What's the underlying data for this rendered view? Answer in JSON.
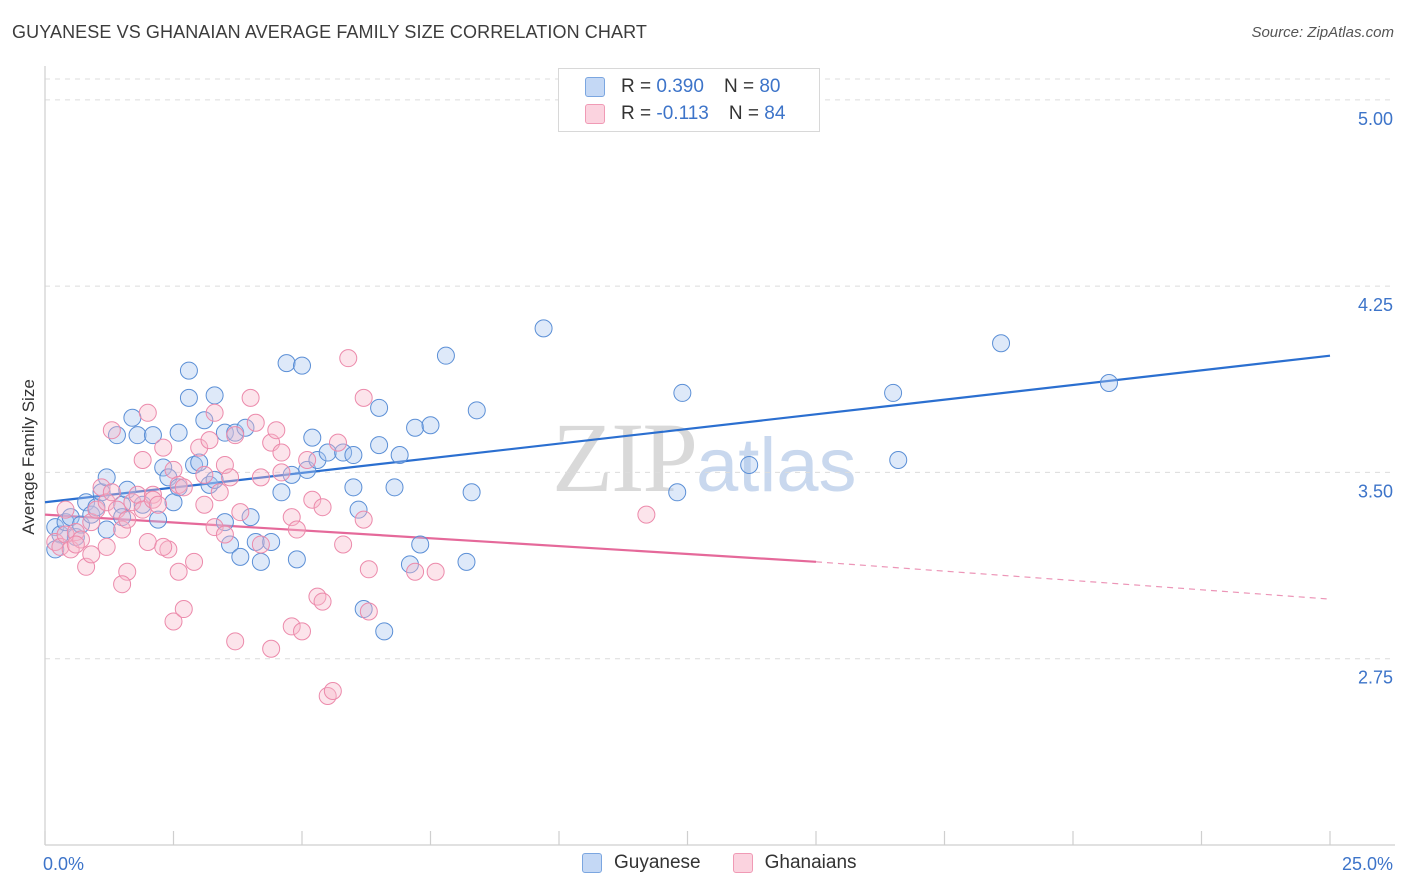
{
  "header": {
    "title": "GUYANESE VS GHANAIAN AVERAGE FAMILY SIZE CORRELATION CHART",
    "source": "Source: ZipAtlas.com"
  },
  "watermark": {
    "zip": "ZIP",
    "atlas": "atlas"
  },
  "legend": {
    "rows": [
      {
        "r_label": "R =",
        "r_value": "0.390",
        "n_label": "N =",
        "n_value": "80",
        "color": "#a9c6f0"
      },
      {
        "r_label": "R =",
        "r_value": "-0.113",
        "n_label": "N =",
        "n_value": "84",
        "color": "#f7b8cb"
      }
    ]
  },
  "bottom_legend": {
    "series_a": "Guyanese",
    "series_b": "Ghanaians"
  },
  "chart_data": {
    "type": "scatter",
    "title": "GUYANESE VS GHANAIAN AVERAGE FAMILY SIZE CORRELATION CHART",
    "ylabel": "Average Family Size",
    "xlim": [
      0,
      25
    ],
    "ylim": [
      2.0,
      5.1
    ],
    "y_ticks": [
      2.75,
      3.5,
      4.25,
      5.0
    ],
    "y_tick_labels": [
      "2.75",
      "3.50",
      "4.25",
      "5.00"
    ],
    "x_tick_labels": [
      "0.0%",
      "25.0%"
    ],
    "grid": true,
    "colors": {
      "guyanese": "#4a86d4",
      "ghanaians": "#e8709b"
    },
    "series": [
      {
        "name": "Guyanese",
        "trend": {
          "x0": 0.0,
          "y0": 3.38,
          "x1": 25.0,
          "y1": 3.97
        },
        "points": [
          [
            0.2,
            3.28
          ],
          [
            0.3,
            3.25
          ],
          [
            0.4,
            3.3
          ],
          [
            0.5,
            3.32
          ],
          [
            0.6,
            3.24
          ],
          [
            0.7,
            3.29
          ],
          [
            0.8,
            3.38
          ],
          [
            0.9,
            3.33
          ],
          [
            1.0,
            3.36
          ],
          [
            1.1,
            3.42
          ],
          [
            1.2,
            3.27
          ],
          [
            1.2,
            3.48
          ],
          [
            1.4,
            3.65
          ],
          [
            1.5,
            3.37
          ],
          [
            1.5,
            3.32
          ],
          [
            1.6,
            3.43
          ],
          [
            1.7,
            3.72
          ],
          [
            1.8,
            3.65
          ],
          [
            1.9,
            3.37
          ],
          [
            2.1,
            3.65
          ],
          [
            2.2,
            3.31
          ],
          [
            2.3,
            3.52
          ],
          [
            2.4,
            3.48
          ],
          [
            2.5,
            3.38
          ],
          [
            2.6,
            3.44
          ],
          [
            2.6,
            3.66
          ],
          [
            2.8,
            3.8
          ],
          [
            2.8,
            3.91
          ],
          [
            2.9,
            3.53
          ],
          [
            3.1,
            3.71
          ],
          [
            3.2,
            3.45
          ],
          [
            3.3,
            3.81
          ],
          [
            3.3,
            3.47
          ],
          [
            3.5,
            3.66
          ],
          [
            3.5,
            3.3
          ],
          [
            3.6,
            3.21
          ],
          [
            3.7,
            3.66
          ],
          [
            3.8,
            3.16
          ],
          [
            3.9,
            3.68
          ],
          [
            4.0,
            3.32
          ],
          [
            4.1,
            3.22
          ],
          [
            4.2,
            3.14
          ],
          [
            4.4,
            3.22
          ],
          [
            4.6,
            3.42
          ],
          [
            4.7,
            3.94
          ],
          [
            4.8,
            3.49
          ],
          [
            4.9,
            3.15
          ],
          [
            5.0,
            3.93
          ],
          [
            5.1,
            3.51
          ],
          [
            5.2,
            3.64
          ],
          [
            5.3,
            3.55
          ],
          [
            5.5,
            3.58
          ],
          [
            5.8,
            3.58
          ],
          [
            6.0,
            3.44
          ],
          [
            6.0,
            3.57
          ],
          [
            6.1,
            3.35
          ],
          [
            6.2,
            2.95
          ],
          [
            6.5,
            3.61
          ],
          [
            6.5,
            3.76
          ],
          [
            6.6,
            2.86
          ],
          [
            6.8,
            3.44
          ],
          [
            6.9,
            3.57
          ],
          [
            7.1,
            3.13
          ],
          [
            7.2,
            3.68
          ],
          [
            7.3,
            3.21
          ],
          [
            7.5,
            3.69
          ],
          [
            7.8,
            3.97
          ],
          [
            8.2,
            3.14
          ],
          [
            8.3,
            3.42
          ],
          [
            8.4,
            3.75
          ],
          [
            9.7,
            4.08
          ],
          [
            12.3,
            3.42
          ],
          [
            12.4,
            3.82
          ],
          [
            13.7,
            3.53
          ],
          [
            16.5,
            3.82
          ],
          [
            16.6,
            3.55
          ],
          [
            18.6,
            4.02
          ],
          [
            20.7,
            3.86
          ],
          [
            0.2,
            3.19
          ],
          [
            3.0,
            3.54
          ]
        ]
      },
      {
        "name": "Ghanaians",
        "trend": {
          "x0": 0.0,
          "y0": 3.33,
          "x1": 15.0,
          "y1": 3.14,
          "dash_x1": 25.0,
          "dash_y1": 2.99
        },
        "points": [
          [
            0.2,
            3.22
          ],
          [
            0.3,
            3.2
          ],
          [
            0.4,
            3.25
          ],
          [
            0.5,
            3.19
          ],
          [
            0.6,
            3.26
          ],
          [
            0.7,
            3.23
          ],
          [
            0.8,
            3.12
          ],
          [
            0.9,
            3.3
          ],
          [
            0.9,
            3.17
          ],
          [
            1.0,
            3.35
          ],
          [
            1.1,
            3.44
          ],
          [
            1.2,
            3.2
          ],
          [
            1.2,
            3.38
          ],
          [
            1.3,
            3.42
          ],
          [
            1.3,
            3.67
          ],
          [
            1.4,
            3.35
          ],
          [
            1.5,
            3.27
          ],
          [
            1.6,
            3.1
          ],
          [
            1.6,
            3.31
          ],
          [
            1.7,
            3.38
          ],
          [
            1.8,
            3.41
          ],
          [
            1.9,
            3.35
          ],
          [
            1.9,
            3.55
          ],
          [
            2.0,
            3.74
          ],
          [
            2.0,
            3.22
          ],
          [
            2.1,
            3.41
          ],
          [
            2.1,
            3.39
          ],
          [
            2.2,
            3.37
          ],
          [
            2.3,
            3.6
          ],
          [
            2.4,
            3.19
          ],
          [
            2.5,
            3.51
          ],
          [
            2.5,
            2.9
          ],
          [
            2.6,
            3.1
          ],
          [
            2.6,
            3.45
          ],
          [
            2.7,
            3.44
          ],
          [
            2.7,
            2.95
          ],
          [
            2.9,
            3.14
          ],
          [
            3.0,
            3.6
          ],
          [
            3.1,
            3.49
          ],
          [
            3.1,
            3.37
          ],
          [
            3.2,
            3.63
          ],
          [
            3.3,
            3.74
          ],
          [
            3.3,
            3.28
          ],
          [
            3.4,
            3.42
          ],
          [
            3.5,
            3.53
          ],
          [
            3.5,
            3.25
          ],
          [
            3.6,
            3.48
          ],
          [
            3.7,
            3.65
          ],
          [
            3.7,
            2.82
          ],
          [
            4.0,
            3.8
          ],
          [
            4.1,
            3.7
          ],
          [
            4.2,
            3.21
          ],
          [
            4.2,
            3.48
          ],
          [
            4.4,
            2.79
          ],
          [
            4.4,
            3.62
          ],
          [
            4.5,
            3.67
          ],
          [
            4.6,
            3.58
          ],
          [
            4.8,
            3.32
          ],
          [
            4.8,
            2.88
          ],
          [
            4.9,
            3.27
          ],
          [
            5.0,
            2.86
          ],
          [
            5.1,
            3.55
          ],
          [
            5.2,
            3.39
          ],
          [
            5.3,
            3.0
          ],
          [
            5.4,
            2.98
          ],
          [
            5.4,
            3.36
          ],
          [
            5.5,
            2.6
          ],
          [
            5.6,
            2.62
          ],
          [
            5.8,
            3.21
          ],
          [
            5.9,
            3.96
          ],
          [
            6.2,
            3.8
          ],
          [
            6.2,
            3.31
          ],
          [
            6.3,
            2.94
          ],
          [
            6.3,
            3.11
          ],
          [
            7.2,
            3.1
          ],
          [
            7.6,
            3.1
          ],
          [
            11.7,
            3.33
          ],
          [
            0.4,
            3.35
          ],
          [
            0.6,
            3.21
          ],
          [
            1.5,
            3.05
          ],
          [
            2.3,
            3.2
          ],
          [
            3.8,
            3.34
          ],
          [
            5.7,
            3.62
          ],
          [
            4.6,
            3.5
          ]
        ]
      }
    ]
  }
}
